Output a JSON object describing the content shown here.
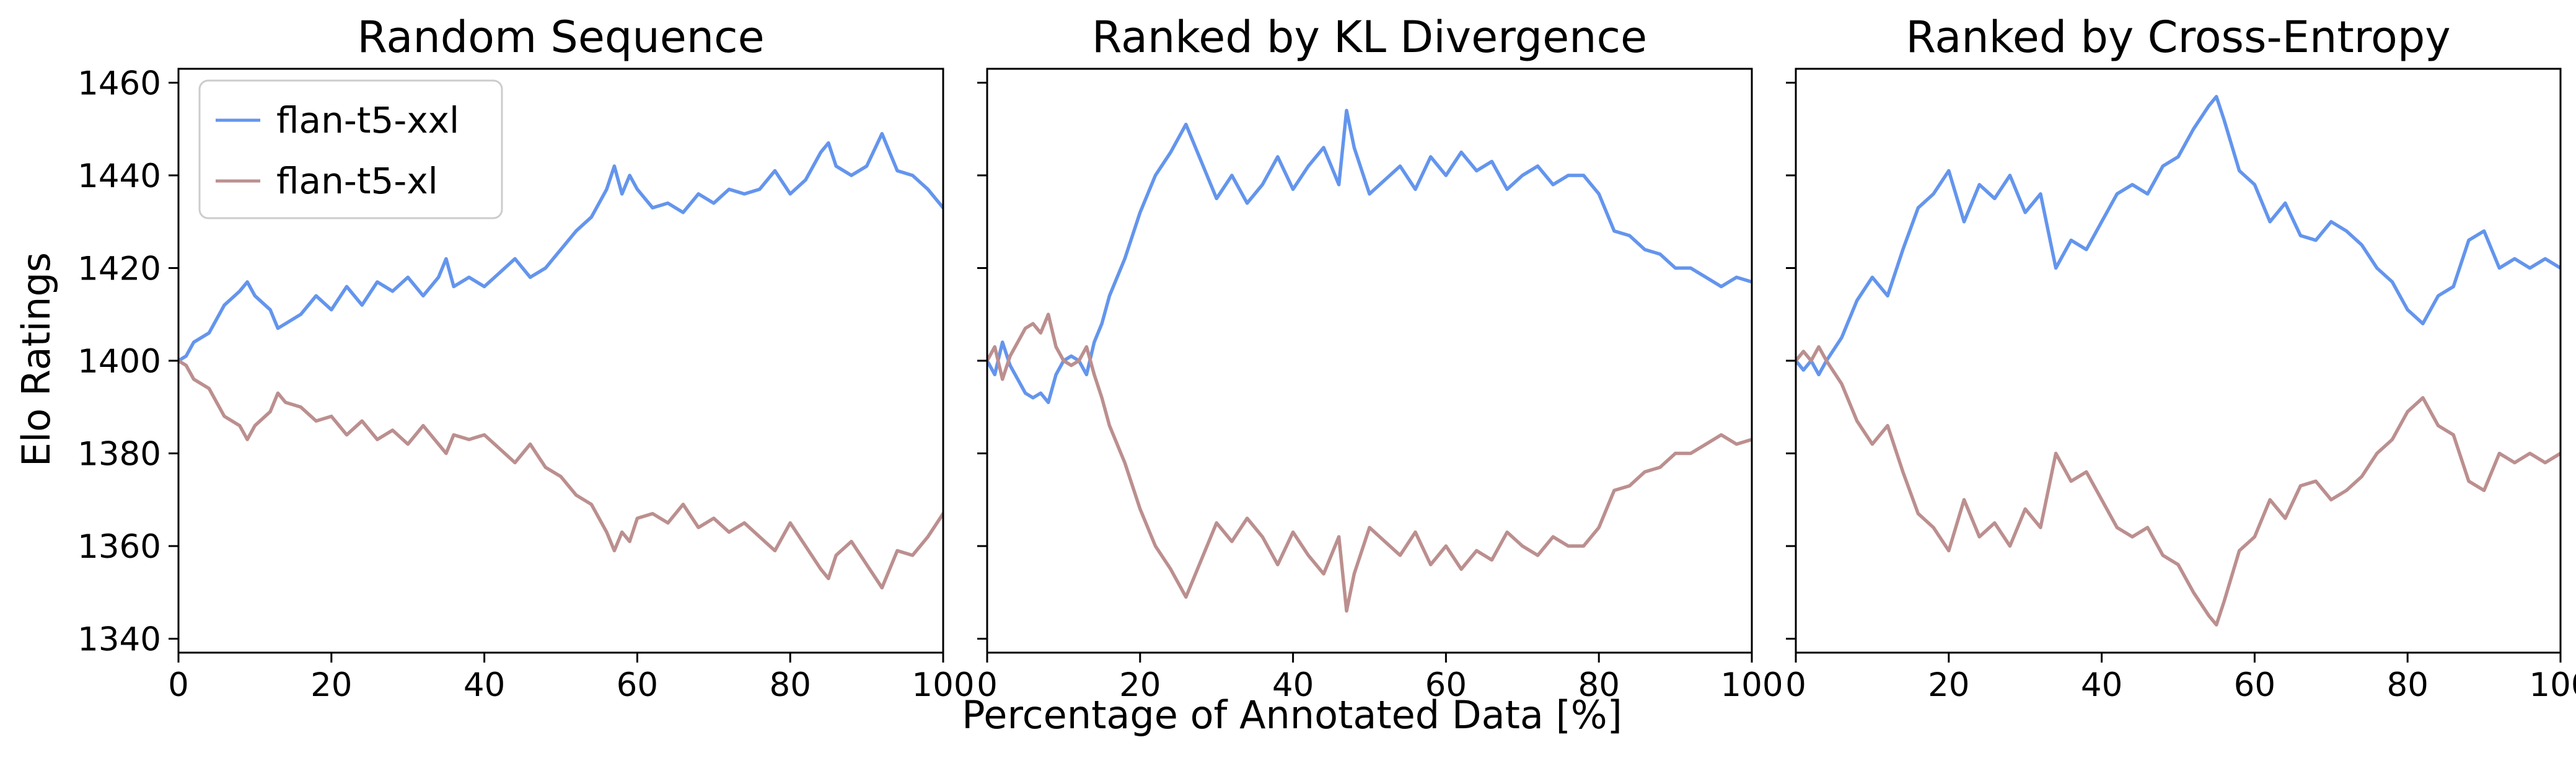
{
  "figure": {
    "xlabel": "Percentage of Annotated Data [%]",
    "ylabel": "Elo Ratings"
  },
  "legend": {
    "placement": "upper-left of first panel",
    "entries": [
      {
        "label": "flan-t5-xxl",
        "color": "#6495ED"
      },
      {
        "label": "flan-t5-xl",
        "color": "#BC8F8F"
      }
    ]
  },
  "chart_data": [
    {
      "type": "line",
      "title": "Random Sequence",
      "xlim": [
        0,
        100
      ],
      "ylim": [
        1337,
        1463
      ],
      "xticks": [
        0,
        20,
        40,
        60,
        80,
        100
      ],
      "yticks": [
        1340,
        1360,
        1380,
        1400,
        1420,
        1440,
        1460
      ],
      "grid": false,
      "series": [
        {
          "name": "flan-t5-xxl",
          "color": "#6495ED",
          "x": [
            0,
            1,
            2,
            4,
            6,
            8,
            9,
            10,
            12,
            13,
            14,
            16,
            18,
            20,
            22,
            24,
            26,
            28,
            30,
            32,
            34,
            35,
            36,
            38,
            40,
            42,
            44,
            46,
            48,
            50,
            52,
            54,
            56,
            57,
            58,
            59,
            60,
            62,
            64,
            66,
            68,
            70,
            72,
            74,
            76,
            78,
            80,
            82,
            84,
            85,
            86,
            88,
            90,
            92,
            94,
            96,
            98,
            100
          ],
          "y": [
            1400,
            1401,
            1404,
            1406,
            1412,
            1415,
            1417,
            1414,
            1411,
            1407,
            1408,
            1410,
            1414,
            1411,
            1416,
            1412,
            1417,
            1415,
            1418,
            1414,
            1418,
            1422,
            1416,
            1418,
            1416,
            1419,
            1422,
            1418,
            1420,
            1424,
            1428,
            1431,
            1437,
            1442,
            1436,
            1440,
            1437,
            1433,
            1434,
            1432,
            1436,
            1434,
            1437,
            1436,
            1437,
            1441,
            1436,
            1439,
            1445,
            1447,
            1442,
            1440,
            1442,
            1449,
            1441,
            1440,
            1437,
            1433
          ]
        },
        {
          "name": "flan-t5-xl",
          "color": "#BC8F8F",
          "x": [
            0,
            1,
            2,
            4,
            6,
            8,
            9,
            10,
            12,
            13,
            14,
            16,
            18,
            20,
            22,
            24,
            26,
            28,
            30,
            32,
            34,
            35,
            36,
            38,
            40,
            42,
            44,
            46,
            48,
            50,
            52,
            54,
            56,
            57,
            58,
            59,
            60,
            62,
            64,
            66,
            68,
            70,
            72,
            74,
            76,
            78,
            80,
            82,
            84,
            85,
            86,
            88,
            90,
            92,
            94,
            96,
            98,
            100
          ],
          "y": [
            1400,
            1399,
            1396,
            1394,
            1388,
            1386,
            1383,
            1386,
            1389,
            1393,
            1391,
            1390,
            1387,
            1388,
            1384,
            1387,
            1383,
            1385,
            1382,
            1386,
            1382,
            1380,
            1384,
            1383,
            1384,
            1381,
            1378,
            1382,
            1377,
            1375,
            1371,
            1369,
            1363,
            1359,
            1363,
            1361,
            1366,
            1367,
            1365,
            1369,
            1364,
            1366,
            1363,
            1365,
            1362,
            1359,
            1365,
            1360,
            1355,
            1353,
            1358,
            1361,
            1356,
            1351,
            1359,
            1358,
            1362,
            1367
          ]
        }
      ]
    },
    {
      "type": "line",
      "title": "Ranked by KL Divergence",
      "xlim": [
        0,
        100
      ],
      "ylim": [
        1337,
        1463
      ],
      "xticks": [
        0,
        20,
        40,
        60,
        80,
        100
      ],
      "yticks": [
        1340,
        1360,
        1380,
        1400,
        1420,
        1440,
        1460
      ],
      "grid": false,
      "series": [
        {
          "name": "flan-t5-xxl",
          "color": "#6495ED",
          "x": [
            0,
            1,
            2,
            3,
            4,
            5,
            6,
            7,
            8,
            9,
            10,
            11,
            12,
            13,
            14,
            15,
            16,
            18,
            20,
            22,
            24,
            26,
            28,
            30,
            32,
            34,
            36,
            38,
            40,
            42,
            44,
            46,
            47,
            48,
            50,
            52,
            54,
            56,
            58,
            60,
            62,
            64,
            66,
            68,
            70,
            72,
            74,
            76,
            78,
            80,
            82,
            84,
            86,
            88,
            90,
            92,
            94,
            96,
            98,
            100
          ],
          "y": [
            1400,
            1397,
            1404,
            1399,
            1396,
            1393,
            1392,
            1393,
            1391,
            1397,
            1400,
            1401,
            1400,
            1397,
            1404,
            1408,
            1414,
            1422,
            1432,
            1440,
            1445,
            1451,
            1443,
            1435,
            1440,
            1434,
            1438,
            1444,
            1437,
            1442,
            1446,
            1438,
            1454,
            1446,
            1436,
            1439,
            1442,
            1437,
            1444,
            1440,
            1445,
            1441,
            1443,
            1437,
            1440,
            1442,
            1438,
            1440,
            1440,
            1436,
            1428,
            1427,
            1424,
            1423,
            1420,
            1420,
            1418,
            1416,
            1418,
            1417
          ]
        },
        {
          "name": "flan-t5-xl",
          "color": "#BC8F8F",
          "x": [
            0,
            1,
            2,
            3,
            4,
            5,
            6,
            7,
            8,
            9,
            10,
            11,
            12,
            13,
            14,
            15,
            16,
            18,
            20,
            22,
            24,
            26,
            28,
            30,
            32,
            34,
            36,
            38,
            40,
            42,
            44,
            46,
            47,
            48,
            50,
            52,
            54,
            56,
            58,
            60,
            62,
            64,
            66,
            68,
            70,
            72,
            74,
            76,
            78,
            80,
            82,
            84,
            86,
            88,
            90,
            92,
            94,
            96,
            98,
            100
          ],
          "y": [
            1400,
            1403,
            1396,
            1401,
            1404,
            1407,
            1408,
            1406,
            1410,
            1403,
            1400,
            1399,
            1400,
            1403,
            1397,
            1392,
            1386,
            1378,
            1368,
            1360,
            1355,
            1349,
            1357,
            1365,
            1361,
            1366,
            1362,
            1356,
            1363,
            1358,
            1354,
            1362,
            1346,
            1354,
            1364,
            1361,
            1358,
            1363,
            1356,
            1360,
            1355,
            1359,
            1357,
            1363,
            1360,
            1358,
            1362,
            1360,
            1360,
            1364,
            1372,
            1373,
            1376,
            1377,
            1380,
            1380,
            1382,
            1384,
            1382,
            1383
          ]
        }
      ]
    },
    {
      "type": "line",
      "title": "Ranked by Cross-Entropy",
      "xlim": [
        0,
        100
      ],
      "ylim": [
        1337,
        1463
      ],
      "xticks": [
        0,
        20,
        40,
        60,
        80,
        100
      ],
      "yticks": [
        1340,
        1360,
        1380,
        1400,
        1420,
        1440,
        1460
      ],
      "grid": false,
      "series": [
        {
          "name": "flan-t5-xxl",
          "color": "#6495ED",
          "x": [
            0,
            1,
            2,
            3,
            4,
            6,
            8,
            10,
            12,
            14,
            16,
            18,
            20,
            22,
            24,
            26,
            28,
            30,
            32,
            34,
            36,
            38,
            40,
            42,
            44,
            46,
            48,
            50,
            52,
            54,
            55,
            56,
            58,
            60,
            62,
            64,
            66,
            68,
            70,
            72,
            74,
            76,
            78,
            80,
            82,
            84,
            86,
            88,
            90,
            92,
            94,
            96,
            98,
            100
          ],
          "y": [
            1400,
            1398,
            1400,
            1397,
            1400,
            1405,
            1413,
            1418,
            1414,
            1424,
            1433,
            1436,
            1441,
            1430,
            1438,
            1435,
            1440,
            1432,
            1436,
            1420,
            1426,
            1424,
            1430,
            1436,
            1438,
            1436,
            1442,
            1444,
            1450,
            1455,
            1457,
            1452,
            1441,
            1438,
            1430,
            1434,
            1427,
            1426,
            1430,
            1428,
            1425,
            1420,
            1417,
            1411,
            1408,
            1414,
            1416,
            1426,
            1428,
            1420,
            1422,
            1420,
            1422,
            1420
          ]
        },
        {
          "name": "flan-t5-xl",
          "color": "#BC8F8F",
          "x": [
            0,
            1,
            2,
            3,
            4,
            6,
            8,
            10,
            12,
            14,
            16,
            18,
            20,
            22,
            24,
            26,
            28,
            30,
            32,
            34,
            36,
            38,
            40,
            42,
            44,
            46,
            48,
            50,
            52,
            54,
            55,
            56,
            58,
            60,
            62,
            64,
            66,
            68,
            70,
            72,
            74,
            76,
            78,
            80,
            82,
            84,
            86,
            88,
            90,
            92,
            94,
            96,
            98,
            100
          ],
          "y": [
            1400,
            1402,
            1400,
            1403,
            1400,
            1395,
            1387,
            1382,
            1386,
            1376,
            1367,
            1364,
            1359,
            1370,
            1362,
            1365,
            1360,
            1368,
            1364,
            1380,
            1374,
            1376,
            1370,
            1364,
            1362,
            1364,
            1358,
            1356,
            1350,
            1345,
            1343,
            1348,
            1359,
            1362,
            1370,
            1366,
            1373,
            1374,
            1370,
            1372,
            1375,
            1380,
            1383,
            1389,
            1392,
            1386,
            1384,
            1374,
            1372,
            1380,
            1378,
            1380,
            1378,
            1380
          ]
        }
      ]
    }
  ]
}
